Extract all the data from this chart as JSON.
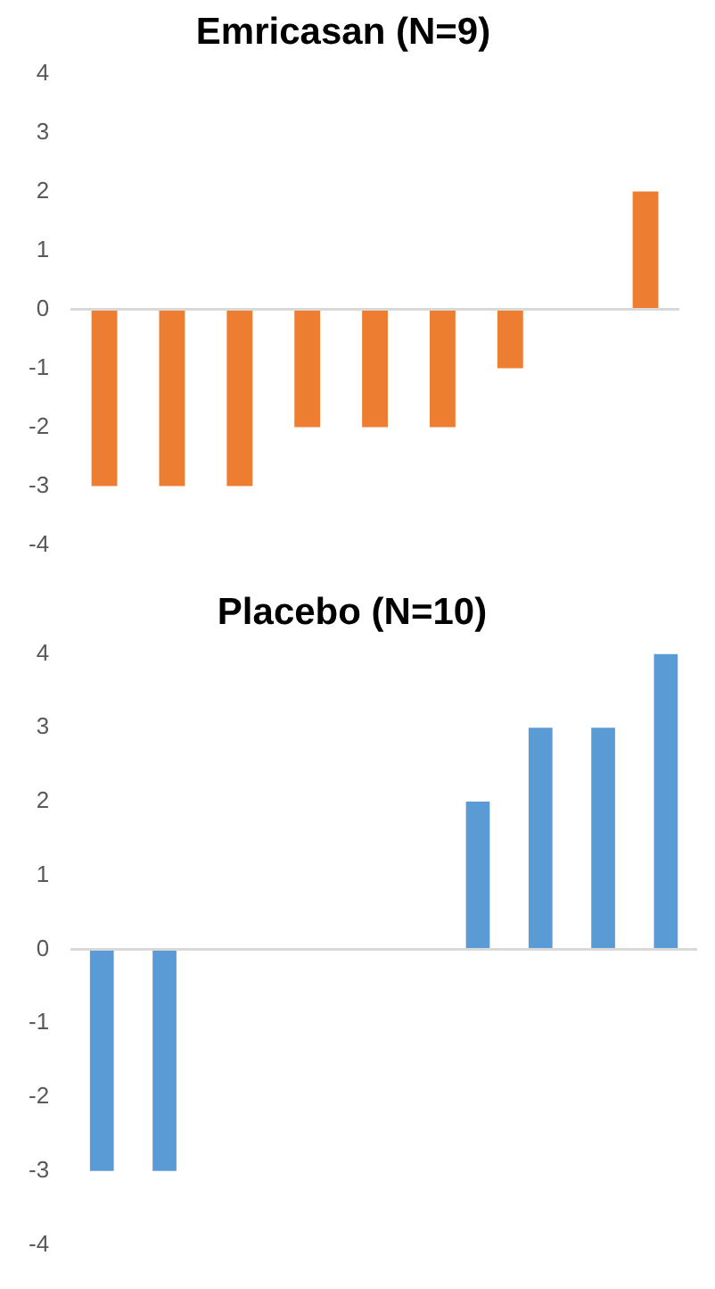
{
  "chart_data": [
    {
      "type": "bar",
      "title": "Emricasan (N=9)",
      "categories": [
        null,
        null,
        null,
        null,
        null,
        null,
        null,
        null,
        null
      ],
      "values": [
        -3,
        -3,
        -3,
        -2,
        -2,
        -2,
        -1,
        0,
        2
      ],
      "color": "#ed7d31",
      "ylim": [
        -4,
        4
      ],
      "yticks": [
        -4,
        -3,
        -2,
        -1,
        0,
        1,
        2,
        3,
        4
      ],
      "tick_labels": "y"
    },
    {
      "type": "bar",
      "title": "Placebo (N=10)",
      "categories": [
        null,
        null,
        null,
        null,
        null,
        null,
        null,
        null,
        null,
        null
      ],
      "values": [
        -3,
        -3,
        0,
        0,
        0,
        0,
        2,
        3,
        3,
        4
      ],
      "color": "#5b9bd5",
      "ylim": [
        -4,
        4
      ],
      "yticks": [
        -4,
        -3,
        -2,
        -1,
        0,
        1,
        2,
        3,
        4
      ],
      "tick_labels": "y"
    }
  ]
}
